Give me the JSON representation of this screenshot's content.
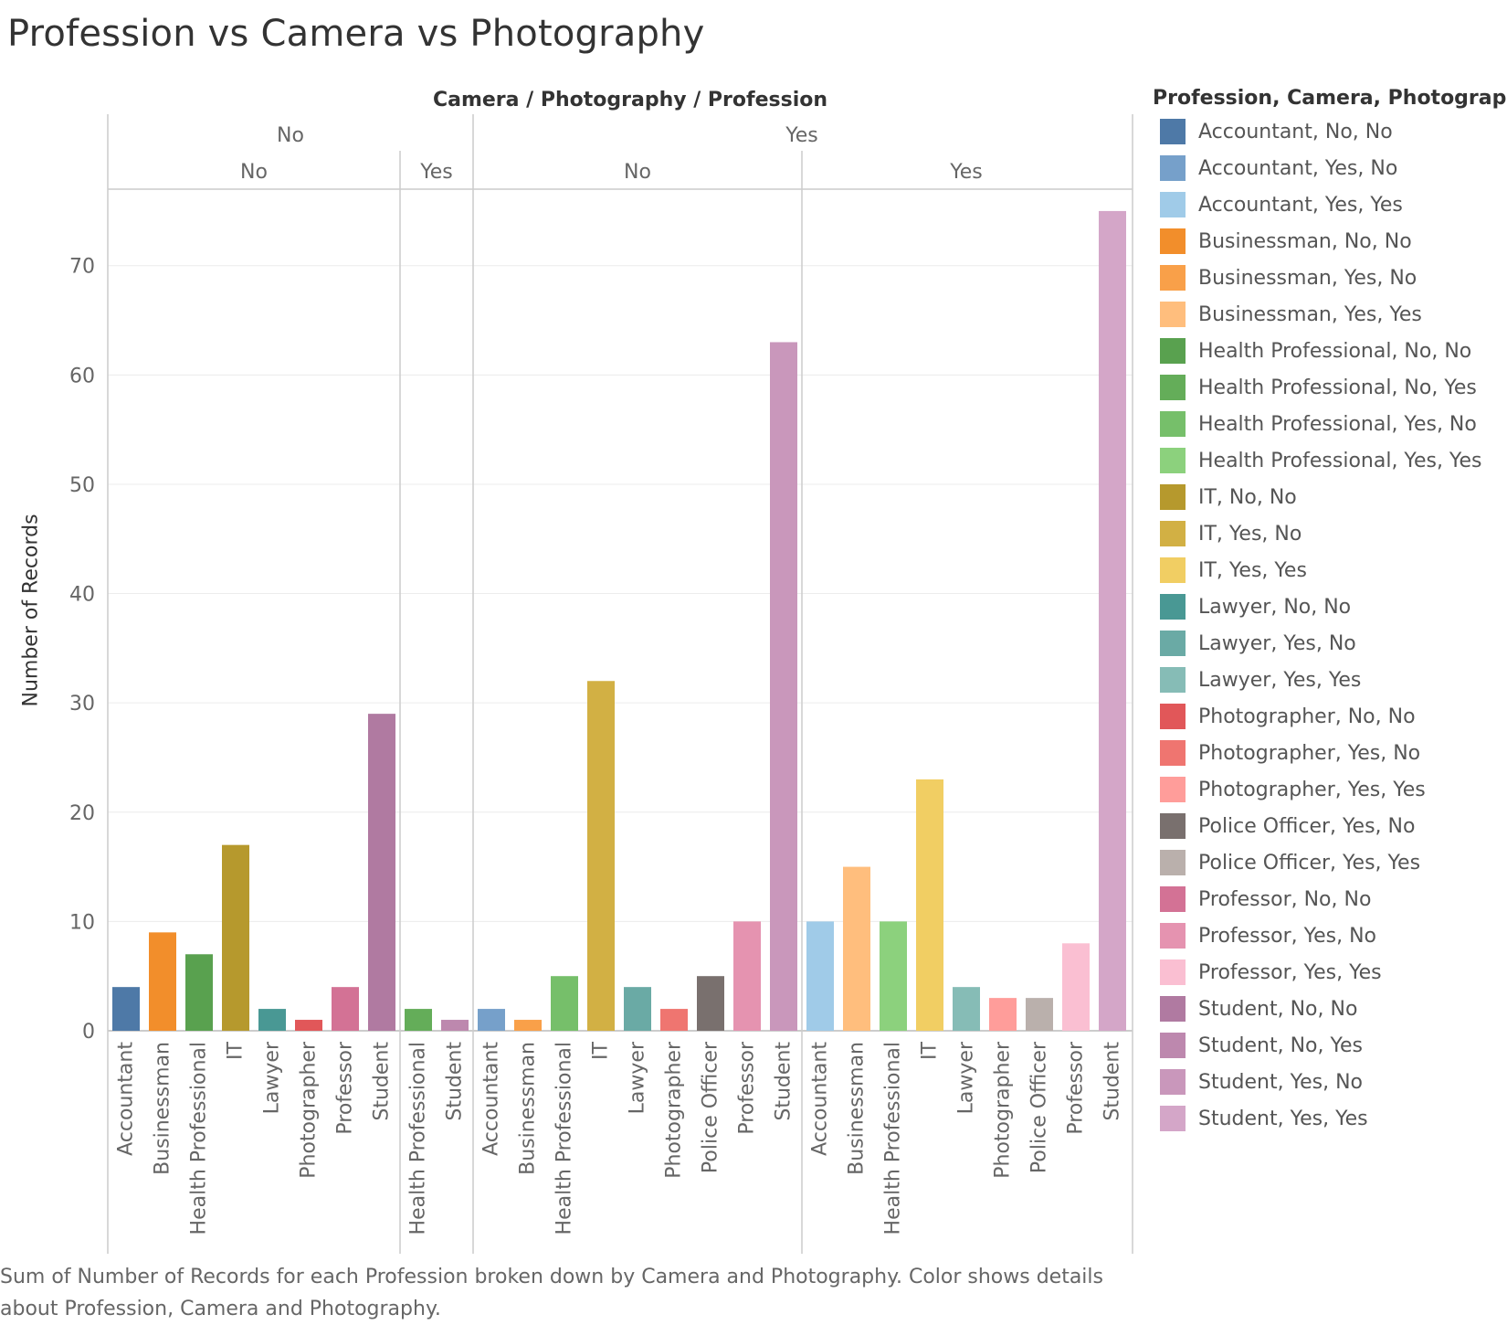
{
  "title": "Profession vs Camera vs Photography",
  "caption": "Sum of Number of Records for each Profession broken down by Camera and Photography.  Color shows details about Profession, Camera and Photography.",
  "chart_data": {
    "type": "bar",
    "header_title": "Camera / Photography / Profession",
    "ylabel": "Number of Records",
    "ylim": [
      0,
      77
    ],
    "yticks": [
      0,
      10,
      20,
      30,
      40,
      50,
      60,
      70
    ],
    "grid": true,
    "legend_placement": "right",
    "panels": [
      {
        "camera": "No",
        "photography": "No",
        "categories": [
          "Accountant",
          "Businessman",
          "Health Professional",
          "IT",
          "Lawyer",
          "Photographer",
          "Professor",
          "Student"
        ],
        "values": [
          4,
          9,
          7,
          17,
          2,
          1,
          4,
          29
        ],
        "colors": [
          "#4e79a7",
          "#f28e2b",
          "#59a14f",
          "#b6992d",
          "#499894",
          "#e15759",
          "#d37295",
          "#b07aa1"
        ]
      },
      {
        "camera": "No",
        "photography": "Yes",
        "categories": [
          "Health Professional",
          "Student"
        ],
        "values": [
          2,
          1
        ],
        "colors": [
          "#64ad59",
          "#bd88ae"
        ]
      },
      {
        "camera": "Yes",
        "photography": "No",
        "categories": [
          "Accountant",
          "Businessman",
          "Health Professional",
          "IT",
          "Lawyer",
          "Photographer",
          "Police Officer",
          "Professor",
          "Student"
        ],
        "values": [
          2,
          1,
          5,
          32,
          4,
          2,
          5,
          10,
          63
        ],
        "colors": [
          "#76a0ca",
          "#f9a049",
          "#76bf6a",
          "#d2b044",
          "#6aaaa5",
          "#ef7570",
          "#79706e",
          "#e593b0",
          "#c997bb"
        ]
      },
      {
        "camera": "Yes",
        "photography": "Yes",
        "categories": [
          "Accountant",
          "Businessman",
          "Health Professional",
          "IT",
          "Lawyer",
          "Photographer",
          "Police Officer",
          "Professor",
          "Student"
        ],
        "values": [
          10,
          15,
          10,
          23,
          4,
          3,
          3,
          8,
          75
        ],
        "colors": [
          "#a0cbe8",
          "#ffbe7d",
          "#8cd17d",
          "#f1ce63",
          "#86bcb6",
          "#ff9d9a",
          "#bab0ac",
          "#fabfd2",
          "#d4a6c8"
        ]
      }
    ],
    "legend": {
      "title": "Profession, Camera, Photography",
      "items": [
        {
          "label": "Accountant, No, No",
          "color": "#4e79a7"
        },
        {
          "label": "Accountant, Yes, No",
          "color": "#76a0ca"
        },
        {
          "label": "Accountant, Yes, Yes",
          "color": "#a0cbe8"
        },
        {
          "label": "Businessman, No, No",
          "color": "#f28e2b"
        },
        {
          "label": "Businessman, Yes, No",
          "color": "#f9a049"
        },
        {
          "label": "Businessman, Yes, Yes",
          "color": "#ffbe7d"
        },
        {
          "label": "Health Professional, No, No",
          "color": "#59a14f"
        },
        {
          "label": "Health Professional, No, Yes",
          "color": "#64ad59"
        },
        {
          "label": "Health Professional, Yes, No",
          "color": "#76bf6a"
        },
        {
          "label": "Health Professional, Yes, Yes",
          "color": "#8cd17d"
        },
        {
          "label": "IT, No, No",
          "color": "#b6992d"
        },
        {
          "label": "IT, Yes, No",
          "color": "#d2b044"
        },
        {
          "label": "IT, Yes, Yes",
          "color": "#f1ce63"
        },
        {
          "label": "Lawyer, No, No",
          "color": "#499894"
        },
        {
          "label": "Lawyer, Yes, No",
          "color": "#6aaaa5"
        },
        {
          "label": "Lawyer, Yes, Yes",
          "color": "#86bcb6"
        },
        {
          "label": "Photographer, No, No",
          "color": "#e15759"
        },
        {
          "label": "Photographer, Yes, No",
          "color": "#ef7570"
        },
        {
          "label": "Photographer, Yes, Yes",
          "color": "#ff9d9a"
        },
        {
          "label": "Police Officer, Yes, No",
          "color": "#79706e"
        },
        {
          "label": "Police Officer, Yes, Yes",
          "color": "#bab0ac"
        },
        {
          "label": "Professor, No, No",
          "color": "#d37295"
        },
        {
          "label": "Professor, Yes, No",
          "color": "#e593b0"
        },
        {
          "label": "Professor, Yes, Yes",
          "color": "#fabfd2"
        },
        {
          "label": "Student, No, No",
          "color": "#b07aa1"
        },
        {
          "label": "Student, No, Yes",
          "color": "#bd88ae"
        },
        {
          "label": "Student, Yes, No",
          "color": "#c997bb"
        },
        {
          "label": "Student, Yes, Yes",
          "color": "#d4a6c8"
        }
      ]
    }
  }
}
